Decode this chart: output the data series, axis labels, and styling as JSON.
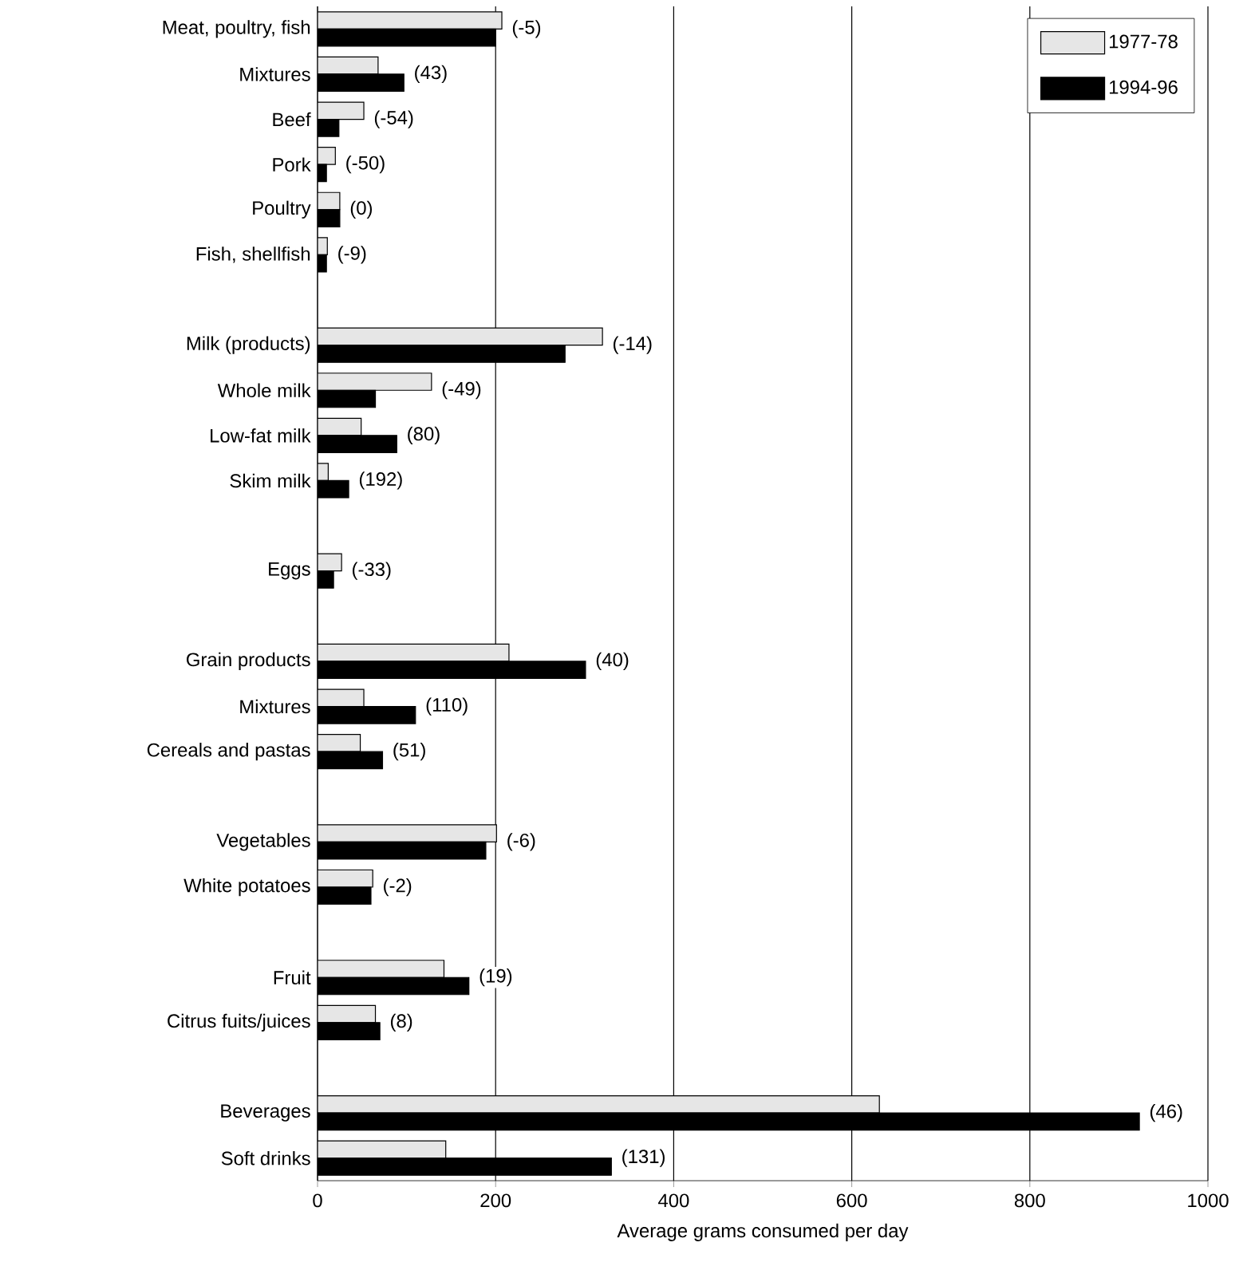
{
  "chart_data": {
    "type": "bar",
    "orientation": "horizontal",
    "xlabel": "Average grams consumed per day",
    "categories": [
      "Meat, poultry, fish",
      "Mixtures",
      "Beef",
      "Pork",
      "Poultry",
      "Fish, shellfish",
      null,
      "Milk (products)",
      "Whole milk",
      "Low-fat milk",
      "Skim milk",
      null,
      "Eggs",
      null,
      "Grain products",
      "Mixtures",
      "Cereals and pastas",
      null,
      "Vegetables",
      "White potatoes",
      null,
      "Fruit",
      "Citrus fuits/juices",
      null,
      "Beverages",
      "Soft drinks"
    ],
    "series": [
      {
        "name": "1977-78",
        "color": "#e6e6e6",
        "values": [
          207,
          68,
          52,
          20,
          25,
          11,
          null,
          320,
          128,
          49,
          12,
          null,
          27,
          null,
          215,
          52,
          48,
          null,
          201,
          62,
          null,
          142,
          65,
          null,
          631,
          144
        ]
      },
      {
        "name": "1994-96",
        "color": "#000000",
        "values": [
          200,
          97,
          24,
          10,
          25,
          10,
          null,
          278,
          65,
          89,
          35,
          null,
          18,
          null,
          301,
          110,
          73,
          null,
          189,
          60,
          null,
          170,
          70,
          null,
          923,
          330
        ]
      }
    ],
    "annotations": [
      {
        "text": "(-5)",
        "x": 207,
        "y": "Meat, poultry, fish"
      },
      {
        "text": "(43)",
        "x": 97,
        "y": "Mixtures"
      },
      {
        "text": "(-54)",
        "x": 52,
        "y": "Beef"
      },
      {
        "text": "(-50)",
        "x": 20,
        "y": "Pork"
      },
      {
        "text": "(0)",
        "x": 25,
        "y": "Poultry"
      },
      {
        "text": "(-9)",
        "x": 11,
        "y": "Fish, shellfish"
      },
      {
        "text": "(-14)",
        "x": 320,
        "y": "Milk (products)"
      },
      {
        "text": "(-49)",
        "x": 128,
        "y": "Whole milk"
      },
      {
        "text": "(80)",
        "x": 89,
        "y": "Low-fat milk"
      },
      {
        "text": "(192)",
        "x": 35,
        "y": "Skim milk"
      },
      {
        "text": "(-33)",
        "x": 27,
        "y": "Eggs"
      },
      {
        "text": "(40)",
        "x": 301,
        "y": "Grain products"
      },
      "(110)",
      {
        "text": "(51)",
        "x": 73,
        "y": "Cereals and pastas"
      },
      {
        "text": "(-6)",
        "x": 201,
        "y": "Vegetables"
      },
      {
        "text": "(-2)",
        "x": 62,
        "y": "White potatoes"
      },
      {
        "text": "(19)",
        "x": 170,
        "y": "Fruit"
      },
      {
        "text": "(8)",
        "x": 70,
        "y": "Citrus fuits/juices"
      },
      {
        "text": "(46)",
        "x": 923,
        "y": "Beverages"
      },
      {
        "text": "(131)",
        "x": 330,
        "y": "Soft drinks"
      }
    ],
    "xlim": [
      0,
      1000
    ],
    "xticks": [
      0,
      200,
      400,
      600,
      800,
      1000
    ],
    "grid": "x",
    "legend": "top right"
  }
}
